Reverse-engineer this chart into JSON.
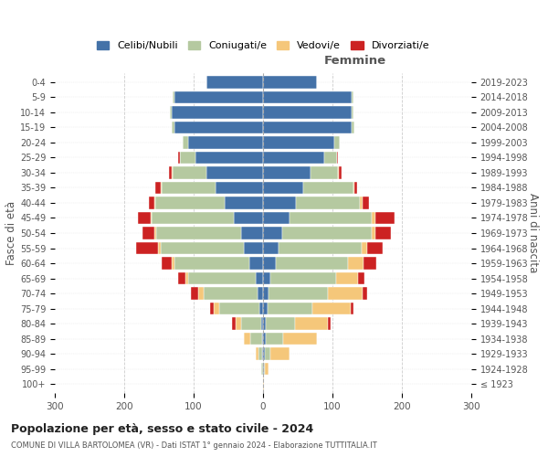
{
  "age_groups": [
    "100+",
    "95-99",
    "90-94",
    "85-89",
    "80-84",
    "75-79",
    "70-74",
    "65-69",
    "60-64",
    "55-59",
    "50-54",
    "45-49",
    "40-44",
    "35-39",
    "30-34",
    "25-29",
    "20-24",
    "15-19",
    "10-14",
    "5-9",
    "0-4"
  ],
  "birth_years": [
    "≤ 1923",
    "1924-1928",
    "1929-1933",
    "1934-1938",
    "1939-1943",
    "1944-1948",
    "1949-1953",
    "1954-1958",
    "1959-1963",
    "1964-1968",
    "1969-1973",
    "1974-1978",
    "1979-1983",
    "1984-1988",
    "1989-1993",
    "1994-1998",
    "1999-2003",
    "2004-2008",
    "2009-2013",
    "2014-2018",
    "2019-2023"
  ],
  "colors": {
    "celibi": "#4472a8",
    "coniugati": "#b5c9a0",
    "vedovi": "#f5c77a",
    "divorziati": "#cc2222"
  },
  "males": {
    "celibi": [
      0,
      0,
      1,
      1,
      2,
      5,
      8,
      10,
      20,
      28,
      32,
      42,
      55,
      68,
      82,
      98,
      108,
      128,
      132,
      128,
      82
    ],
    "coniugati": [
      0,
      2,
      5,
      18,
      30,
      58,
      78,
      98,
      108,
      120,
      122,
      118,
      100,
      78,
      48,
      22,
      8,
      4,
      2,
      2,
      0
    ],
    "vedovi": [
      0,
      1,
      4,
      8,
      8,
      8,
      8,
      4,
      4,
      3,
      2,
      2,
      2,
      1,
      1,
      0,
      0,
      0,
      0,
      0,
      0
    ],
    "divorziati": [
      0,
      0,
      0,
      0,
      5,
      5,
      10,
      10,
      14,
      32,
      18,
      18,
      8,
      8,
      4,
      2,
      0,
      0,
      0,
      0,
      0
    ]
  },
  "females": {
    "nubili": [
      0,
      1,
      2,
      4,
      4,
      6,
      8,
      10,
      18,
      22,
      28,
      38,
      48,
      58,
      68,
      88,
      102,
      128,
      128,
      128,
      78
    ],
    "coniugate": [
      0,
      2,
      8,
      25,
      42,
      65,
      85,
      95,
      105,
      120,
      128,
      118,
      92,
      72,
      40,
      18,
      8,
      4,
      2,
      2,
      0
    ],
    "vedove": [
      1,
      5,
      28,
      48,
      48,
      55,
      50,
      32,
      22,
      8,
      6,
      6,
      4,
      2,
      1,
      1,
      0,
      0,
      0,
      0,
      0
    ],
    "divorziate": [
      0,
      0,
      0,
      0,
      4,
      4,
      7,
      9,
      18,
      22,
      22,
      28,
      8,
      4,
      4,
      1,
      0,
      0,
      0,
      0,
      0
    ]
  },
  "xlim": 300,
  "title": "Popolazione per età, sesso e stato civile - 2024",
  "subtitle": "COMUNE DI VILLA BARTOLOMEA (VR) - Dati ISTAT 1° gennaio 2024 - Elaborazione TUTTITALIA.IT",
  "ylabel_left": "Fasce di età",
  "ylabel_right": "Anni di nascita",
  "xlabel_right": "Femmine",
  "legend_labels": [
    "Celibi/Nubili",
    "Coniugati/e",
    "Vedovi/e",
    "Divorziati/e"
  ],
  "background_color": "#ffffff",
  "grid_color": "#cccccc",
  "tick_color": "#888888",
  "label_color": "#555555"
}
